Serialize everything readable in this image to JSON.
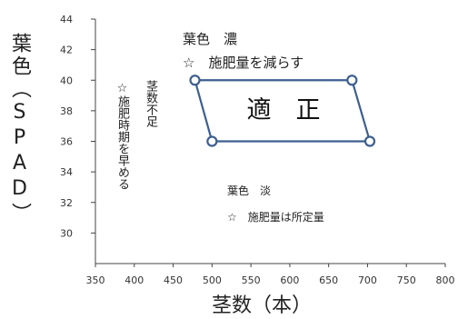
{
  "chart_data": {
    "type": "scatter",
    "ylabel": "葉色（SPAD）",
    "xlabel": "茎数（本）",
    "xlim": [
      350,
      800
    ],
    "ylim": [
      28,
      44
    ],
    "x_ticks": [
      350,
      400,
      450,
      500,
      550,
      600,
      650,
      700,
      750,
      800
    ],
    "y_ticks": [
      30,
      32,
      34,
      36,
      38,
      40,
      42,
      44
    ],
    "grid": false,
    "region": {
      "label": "適　正",
      "polygon": [
        [
          478,
          40
        ],
        [
          680,
          40
        ],
        [
          703,
          36
        ],
        [
          500,
          36
        ]
      ],
      "color": "#3d5f8f"
    },
    "annotations": [
      {
        "id": "upper_1",
        "text": "葉色　濃"
      },
      {
        "id": "upper_2",
        "text": "☆　施肥量を減らす"
      },
      {
        "id": "lower_1",
        "text": "葉色　淡"
      },
      {
        "id": "lower_2",
        "text": "☆　施肥量は所定量"
      },
      {
        "id": "left_1",
        "text": "☆施肥時期を早める"
      },
      {
        "id": "left_2",
        "text": "茎数不足"
      }
    ]
  }
}
